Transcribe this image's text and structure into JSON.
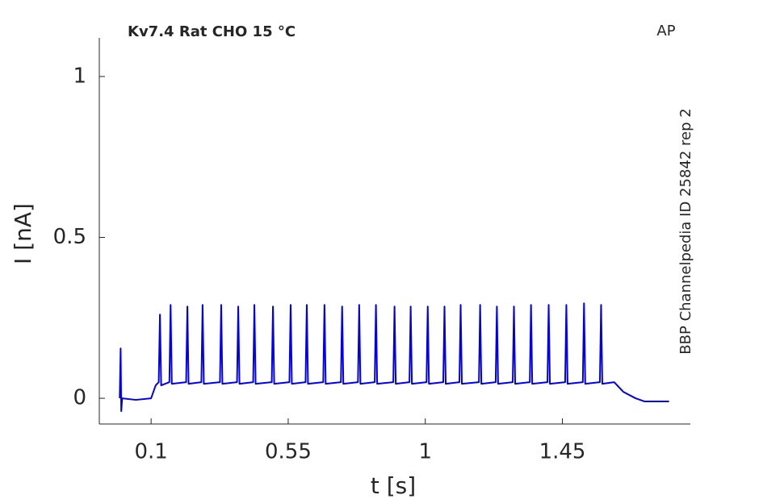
{
  "chart_data": {
    "type": "line",
    "title": "Kv7.4  Rat  CHO  15 °C",
    "annotations": [
      "AP",
      "BBP Channelpedia ID 25842 rep 2"
    ],
    "xlabel": "t [s]",
    "ylabel": "I [nA]",
    "xlim": [
      -0.07,
      1.87
    ],
    "ylim": [
      -0.08,
      1.12
    ],
    "xticks": [
      0.1,
      0.55,
      1,
      1.45
    ],
    "yticks": [
      0,
      0.5,
      1
    ],
    "grid": false,
    "series": [
      {
        "color": "#0000ee",
        "x": [
          -0.003,
          0,
          0.002,
          0.005,
          0.05,
          0.1,
          0.115,
          0.125,
          0.129,
          0.133,
          0.16,
          0.164,
          0.168,
          0.215,
          0.219,
          0.223,
          0.265,
          0.269,
          0.273,
          0.326,
          0.33,
          0.334,
          0.382,
          0.386,
          0.39,
          0.435,
          0.439,
          0.443,
          0.496,
          0.5,
          0.504,
          0.554,
          0.558,
          0.562,
          0.607,
          0.611,
          0.615,
          0.665,
          0.669,
          0.673,
          0.723,
          0.727,
          0.731,
          0.779,
          0.783,
          0.787,
          0.834,
          0.838,
          0.842,
          0.895,
          0.899,
          0.903,
          0.948,
          0.952,
          0.956,
          1.004,
          1.008,
          1.012,
          1.059,
          1.063,
          1.067,
          1.112,
          1.116,
          1.12,
          1.176,
          1.18,
          1.184,
          1.231,
          1.235,
          1.239,
          1.287,
          1.291,
          1.295,
          1.343,
          1.347,
          1.351,
          1.401,
          1.405,
          1.409,
          1.459,
          1.463,
          1.467,
          1.517,
          1.521,
          1.525,
          1.573,
          1.577,
          1.581,
          1.62,
          1.65,
          1.69,
          1.72,
          1.8
        ],
        "values": [
          0,
          0.155,
          -0.04,
          0,
          -0.005,
          0,
          0.04,
          0.05,
          0.26,
          0.04,
          0.05,
          0.29,
          0.045,
          0.05,
          0.285,
          0.045,
          0.05,
          0.29,
          0.045,
          0.05,
          0.29,
          0.045,
          0.05,
          0.285,
          0.045,
          0.05,
          0.29,
          0.045,
          0.05,
          0.285,
          0.045,
          0.05,
          0.29,
          0.045,
          0.05,
          0.29,
          0.045,
          0.05,
          0.29,
          0.045,
          0.05,
          0.285,
          0.045,
          0.05,
          0.29,
          0.045,
          0.05,
          0.29,
          0.045,
          0.05,
          0.285,
          0.045,
          0.05,
          0.285,
          0.045,
          0.05,
          0.285,
          0.045,
          0.05,
          0.285,
          0.045,
          0.05,
          0.29,
          0.045,
          0.05,
          0.29,
          0.045,
          0.05,
          0.285,
          0.045,
          0.05,
          0.285,
          0.045,
          0.05,
          0.29,
          0.045,
          0.05,
          0.29,
          0.045,
          0.05,
          0.29,
          0.045,
          0.05,
          0.295,
          0.045,
          0.05,
          0.29,
          0.045,
          0.05,
          0.02,
          0,
          -0.01,
          -0.01
        ]
      }
    ]
  }
}
